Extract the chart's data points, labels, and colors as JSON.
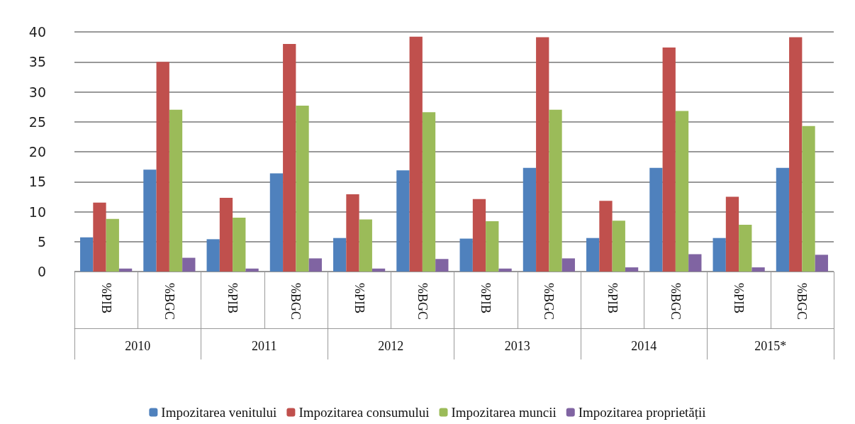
{
  "chart_data": {
    "type": "bar",
    "categories": [
      "%PIB",
      "%BGC",
      "%PIB",
      "%BGC",
      "%PIB",
      "%BGC",
      "%PIB",
      "%BGC",
      "%PIB",
      "%BGC",
      "%PIB",
      "%BGC"
    ],
    "annotations": [
      "2010",
      "2011",
      "2012",
      "2013",
      "2014",
      "2015*"
    ],
    "series": [
      {
        "name": "Impozitarea venitului",
        "color": "#4f81bd",
        "values": [
          5.7,
          17,
          5.4,
          16.4,
          5.6,
          16.9,
          5.5,
          17.3,
          5.6,
          17.3,
          5.6,
          17.3
        ]
      },
      {
        "name": "Impozitarea consumului",
        "color": "#c0504d",
        "values": [
          11.5,
          35,
          12.3,
          38,
          12.9,
          39.2,
          12.1,
          39.1,
          11.8,
          37.4,
          12.5,
          39.1
        ]
      },
      {
        "name": "Impozitarea muncii",
        "color": "#9bbb59",
        "values": [
          8.8,
          27,
          9,
          27.7,
          8.7,
          26.6,
          8.4,
          27,
          8.5,
          26.8,
          7.8,
          24.3
        ]
      },
      {
        "name": "Impozitarea proprietății",
        "color": "#8064a2",
        "values": [
          0.5,
          2.3,
          0.5,
          2.2,
          0.5,
          2.1,
          0.5,
          2.2,
          0.7,
          2.9,
          0.7,
          2.8
        ]
      }
    ],
    "ylim": [
      0,
      40
    ],
    "yticks": [
      0,
      5,
      10,
      15,
      20,
      25,
      30,
      35,
      40
    ],
    "grid": "y",
    "legend": "bottom"
  }
}
